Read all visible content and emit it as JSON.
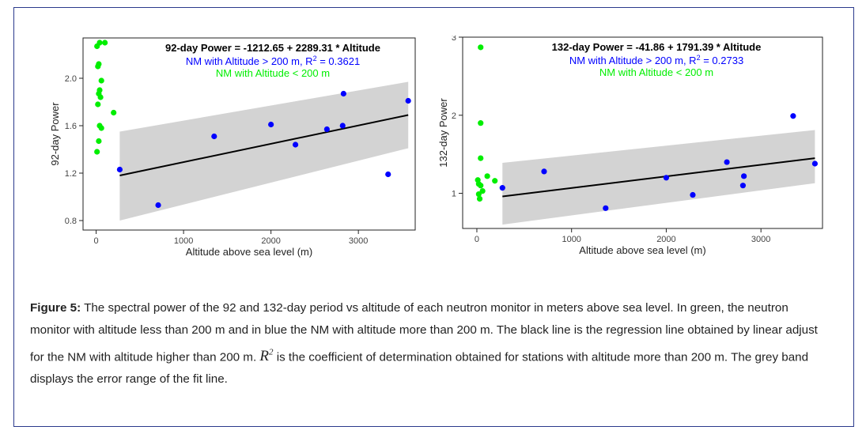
{
  "chart_data": [
    {
      "type": "scatter",
      "annotations": {
        "equation": "92-day Power  =  -1212.65  +  2289.31 * Altitude",
        "high_prefix": "NM with Altitude > 200 m, R",
        "high_sup": "2",
        "high_suffix": " = 0.3621",
        "low": "NM with Altitude < 200 m"
      },
      "xlabel": "Altitude  above sea level (m)",
      "ylabel": "92-day Power",
      "xlim": [
        -150,
        3650
      ],
      "ylim": [
        0.72,
        2.34
      ],
      "xticks": [
        0,
        1000,
        2000,
        3000
      ],
      "xtick_labels": [
        "0",
        "1000",
        "2000",
        "3000"
      ],
      "yticks": [
        0.8,
        1.2,
        1.6,
        2.0
      ],
      "ytick_labels": [
        "0.8",
        "1.2",
        "1.6",
        "2.0"
      ],
      "colors": {
        "high": "#0000ff",
        "low": "#00ee00",
        "fit": "#000000",
        "band": "#d3d3d3"
      },
      "series": [
        {
          "name": "NM with Altitude < 200 m",
          "x": [
            10,
            40,
            100,
            30,
            20,
            60,
            40,
            30,
            50,
            20,
            40,
            60,
            30,
            10,
            200
          ],
          "y": [
            2.27,
            2.3,
            2.3,
            2.12,
            2.1,
            1.98,
            1.9,
            1.87,
            1.84,
            1.78,
            1.6,
            1.58,
            1.47,
            1.38,
            1.71
          ]
        },
        {
          "name": "NM with Altitude > 200 m",
          "x": [
            270,
            710,
            1350,
            2000,
            2280,
            2640,
            2820,
            2830,
            3340,
            3570
          ],
          "y": [
            1.23,
            0.93,
            1.51,
            1.61,
            1.44,
            1.57,
            1.6,
            1.87,
            1.19,
            1.81
          ]
        }
      ],
      "fit": {
        "x": [
          270,
          3570
        ],
        "y": [
          1.18,
          1.69
        ]
      },
      "band": {
        "x": [
          270,
          3570
        ],
        "lower": [
          0.8,
          1.41
        ],
        "upper": [
          1.55,
          1.97
        ]
      }
    },
    {
      "type": "scatter",
      "annotations": {
        "equation": "132-day Power  =  -41.86  +  1791.39 * Altitude",
        "high_prefix": "NM with Altitude > 200 m, R",
        "high_sup": "2",
        "high_suffix": " = 0.2733",
        "low": "NM with Altitude < 200 m"
      },
      "xlabel": "Altitude  above sea level (m)",
      "ylabel": "132-day Power",
      "xlim": [
        -150,
        3650
      ],
      "ylim": [
        0.55,
        3.0
      ],
      "xticks": [
        0,
        1000,
        2000,
        3000
      ],
      "xtick_labels": [
        "0",
        "1000",
        "2000",
        "3000"
      ],
      "yticks": [
        1,
        2,
        3
      ],
      "ytick_labels": [
        "1",
        "2",
        "3"
      ],
      "colors": {
        "high": "#0000ff",
        "low": "#00ee00",
        "fit": "#000000",
        "band": "#d3d3d3"
      },
      "series": [
        {
          "name": "NM with Altitude < 200 m",
          "x": [
            40,
            40,
            40,
            10,
            20,
            110,
            190,
            40,
            60,
            20,
            30
          ],
          "y": [
            2.87,
            1.9,
            1.45,
            1.17,
            1.12,
            1.22,
            1.16,
            1.1,
            1.03,
            0.99,
            0.93
          ]
        },
        {
          "name": "NM with Altitude > 200 m",
          "x": [
            270,
            710,
            1360,
            2000,
            2280,
            2640,
            2810,
            2820,
            3340,
            3570
          ],
          "y": [
            1.07,
            1.28,
            0.81,
            1.2,
            0.98,
            1.4,
            1.1,
            1.22,
            1.99,
            1.38
          ]
        }
      ],
      "fit": {
        "x": [
          270,
          3570
        ],
        "y": [
          0.96,
          1.45
        ]
      },
      "band": {
        "x": [
          270,
          3570
        ],
        "lower": [
          0.6,
          1.13
        ],
        "upper": [
          1.39,
          1.81
        ]
      }
    }
  ],
  "caption": {
    "label": "Figure 5:",
    "part1": " The spectral power of the 92 and 132-day period vs altitude of each neutron monitor in meters above sea level. In green, the neutron monitor with altitude less than 200 m and in blue the NM with altitude more than 200 m. The black line is the regression line obtained by linear adjust for the NM with altitude higher than 200 m.  ",
    "r": "R",
    "sup": "2",
    "part2": " is the coefficient of determination obtained for stations with altitude more than 200 m. The grey band displays the error range of the fit line."
  }
}
